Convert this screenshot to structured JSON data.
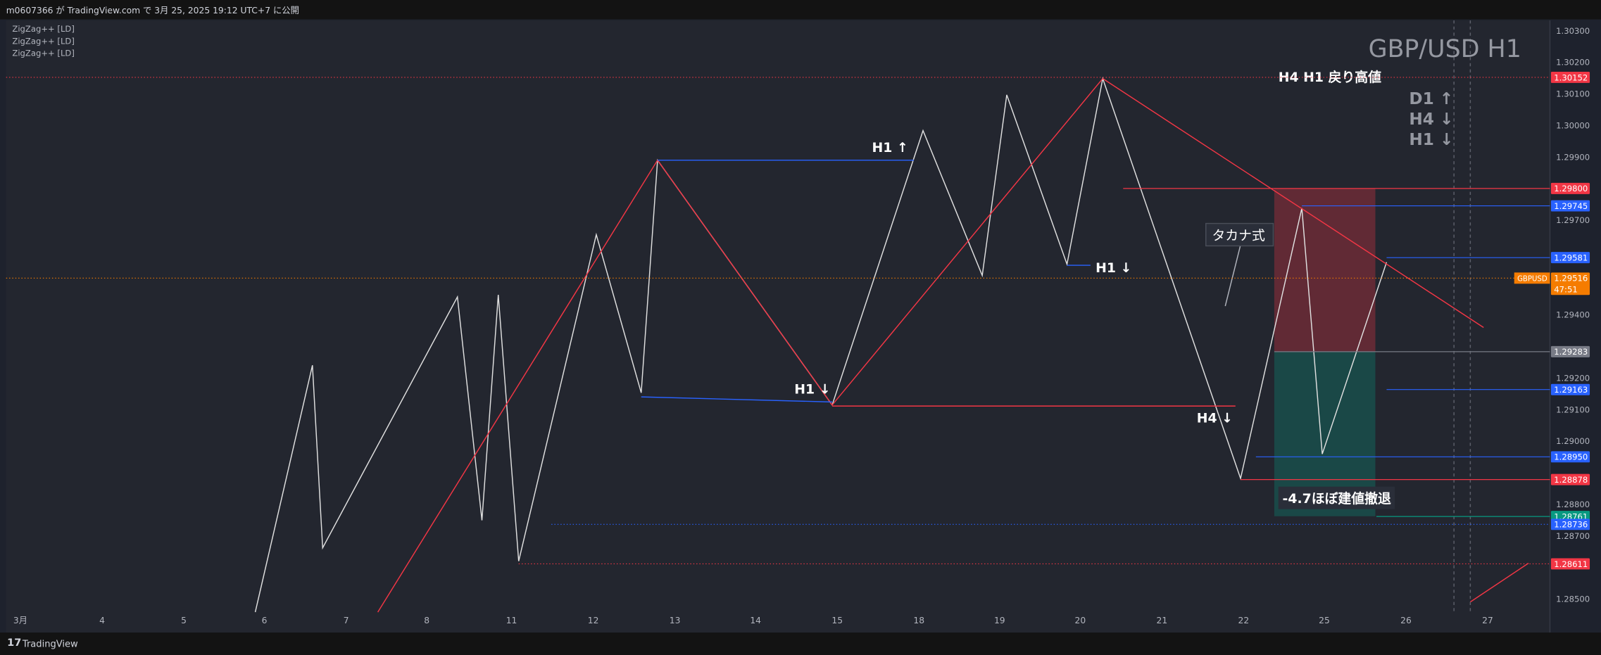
{
  "header": {
    "text": "m0607366 が TradingView.com で 3月 25, 2025 19:12 UTC+7 に公開"
  },
  "indicators": [
    "ZigZag++ [LD]",
    "ZigZag++ [LD]",
    "ZigZag++ [LD]"
  ],
  "title": "GBP/USD H1",
  "annotations": {
    "resistance": "H4 H1 戻り高値",
    "trend": [
      "D1 ↑",
      "H4 ↓",
      "H1 ↓"
    ],
    "h1_up": "H1 ↑",
    "h1_down_a": "H1 ↓",
    "h1_down_b": "H1 ↓",
    "h4_down": "H4 ↓",
    "pattern": "タカナ式",
    "result": "-4.7ほぼ建値撤退"
  },
  "price_axis": {
    "ticks": [
      {
        "value": 1.303,
        "label": "1.30300"
      },
      {
        "value": 1.302,
        "label": "1.30200"
      },
      {
        "value": 1.301,
        "label": "1.30100"
      },
      {
        "value": 1.3,
        "label": "1.30000"
      },
      {
        "value": 1.299,
        "label": "1.29900"
      },
      {
        "value": 1.297,
        "label": "1.29700"
      },
      {
        "value": 1.294,
        "label": "1.29400"
      },
      {
        "value": 1.292,
        "label": "1.29200"
      },
      {
        "value": 1.291,
        "label": "1.29100"
      },
      {
        "value": 1.29,
        "label": "1.29000"
      },
      {
        "value": 1.288,
        "label": "1.28800"
      },
      {
        "value": 1.287,
        "label": "1.28700"
      },
      {
        "value": 1.285,
        "label": "1.28500"
      }
    ]
  },
  "price_tags": [
    {
      "value": 1.30152,
      "label": "1.30152",
      "color": "#f23645"
    },
    {
      "value": 1.298,
      "label": "1.29800",
      "color": "#f23645"
    },
    {
      "value": 1.29745,
      "label": "1.29745",
      "color": "#2962ff"
    },
    {
      "value": 1.29581,
      "label": "1.29581",
      "color": "#2962ff"
    },
    {
      "value": 1.29283,
      "label": "1.29283",
      "color": "#787b86"
    },
    {
      "value": 1.29163,
      "label": "1.29163",
      "color": "#2962ff"
    },
    {
      "value": 1.2895,
      "label": "1.28950",
      "color": "#2962ff"
    },
    {
      "value": 1.28878,
      "label": "1.28878",
      "color": "#f23645"
    },
    {
      "value": 1.28761,
      "label": "1.28761",
      "color": "#089981"
    },
    {
      "value": 1.28736,
      "label": "1.28736",
      "color": "#2962ff"
    },
    {
      "value": 1.28611,
      "label": "1.28611",
      "color": "#f23645"
    }
  ],
  "current": {
    "symbol": "GBPUSD",
    "value": 1.29516,
    "label": "1.29516",
    "countdown": "47:51",
    "color": "#f57c00"
  },
  "time_axis": [
    "3月",
    "4",
    "5",
    "6",
    "7",
    "8",
    "11",
    "12",
    "13",
    "14",
    "15",
    "18",
    "19",
    "20",
    "21",
    "22",
    "25",
    "26",
    "27"
  ],
  "footer": "TradingView"
}
